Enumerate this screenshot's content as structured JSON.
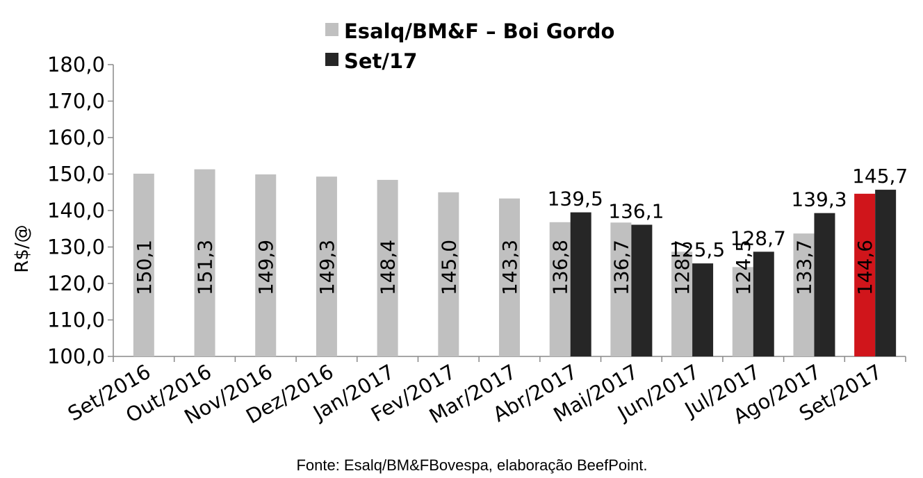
{
  "chart_data": {
    "type": "bar",
    "title": "",
    "ylabel": "R$/@",
    "xlabel": "",
    "ylim": [
      100,
      180
    ],
    "yticks": [
      100,
      110,
      120,
      130,
      140,
      150,
      160,
      170,
      180
    ],
    "ytick_labels": [
      "100,0",
      "110,0",
      "120,0",
      "130,0",
      "140,0",
      "150,0",
      "160,0",
      "170,0",
      "180,0"
    ],
    "categories": [
      "Set/2016",
      "Out/2016",
      "Nov/2016",
      "Dez/2016",
      "Jan/2017",
      "Fev/2017",
      "Mar/2017",
      "Abr/2017",
      "Mai/2017",
      "Jun/2017",
      "Jul/2017",
      "Ago/2017",
      "Set/2017"
    ],
    "series": [
      {
        "name": "Esalq/BM&F – Boi Gordo",
        "color": "#c0c0c0",
        "highlight_color": "#d0151b",
        "highlight_index": 12,
        "values": [
          150.1,
          151.3,
          149.9,
          149.3,
          148.4,
          145.0,
          143.3,
          136.8,
          136.7,
          128.7,
          124.5,
          133.7,
          144.6
        ],
        "labels": [
          "150,1",
          "151,3",
          "149,9",
          "149,3",
          "148,4",
          "145,0",
          "143,3",
          "136,8",
          "136,7",
          "128,7",
          "124,5",
          "133,7",
          "144,6"
        ]
      },
      {
        "name": "Set/17",
        "color": "#262626",
        "values": [
          null,
          null,
          null,
          null,
          null,
          null,
          null,
          139.5,
          136.1,
          125.5,
          128.7,
          139.3,
          145.7
        ],
        "labels": [
          "",
          "",
          "",
          "",
          "",
          "",
          "",
          "139,5",
          "136,1",
          "125,5",
          "128,7",
          "139,3",
          "145,7"
        ]
      }
    ],
    "legend": "top-center",
    "grid": false
  },
  "source": "Fonte: Esalq/BM&FBovespa, elaboração BeefPoint."
}
